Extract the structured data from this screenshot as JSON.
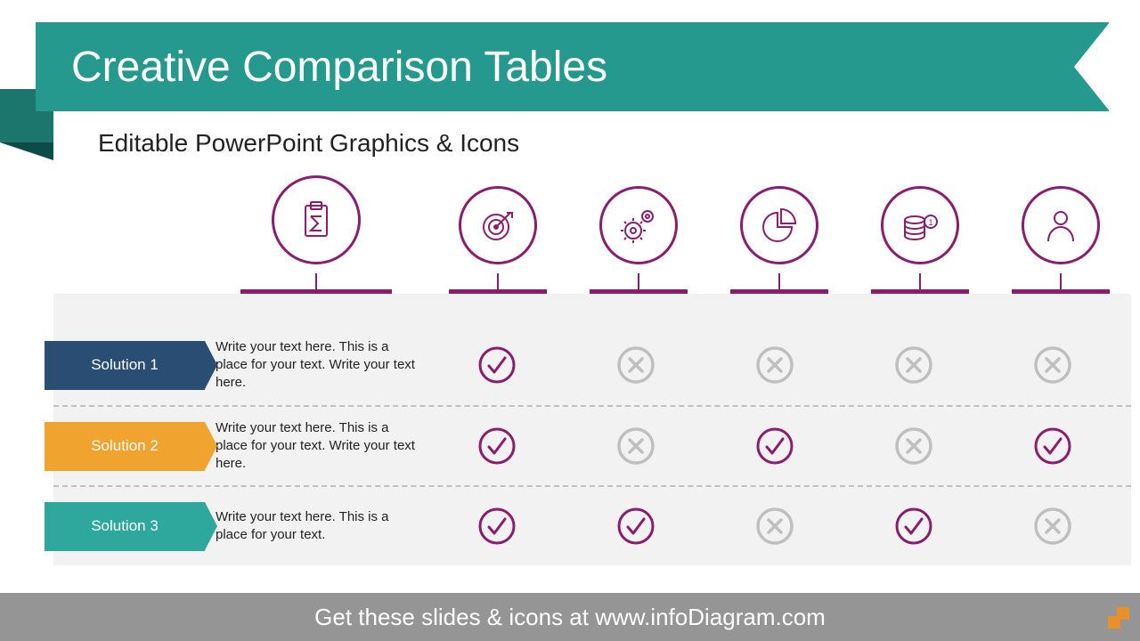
{
  "colors": {
    "ribbon": "#26998f",
    "ribbon_shadow": "#1d766d",
    "accent": "#8a1d6d",
    "row1": "#2a4d74",
    "row2": "#f1a330",
    "row3": "#2ea89c",
    "table_bg": "#f2f2f2",
    "footer_bg": "#959595",
    "check": "#8a1d6d",
    "cross": "#bfbfbf"
  },
  "title": "Creative Comparison Tables",
  "subtitle": "Editable PowerPoint Graphics & Icons",
  "footer": "Get these slides & icons at www.infoDiagram.com",
  "columns": [
    {
      "label": "Description",
      "icon": "clipboard-sum-icon"
    },
    {
      "label": "Strategy",
      "icon": "target-icon"
    },
    {
      "label": "Execution",
      "icon": "gears-icon"
    },
    {
      "label": "Analytics",
      "icon": "pie-chart-icon"
    },
    {
      "label": "Finance",
      "icon": "coins-icon"
    },
    {
      "label": "HR",
      "icon": "person-icon"
    }
  ],
  "rows": [
    {
      "label": "Solution 1",
      "color": "#2a4d74",
      "description": "Write your text here. This is a place for your text. Write your text here.",
      "marks": [
        "check",
        "cross",
        "cross",
        "cross",
        "cross"
      ]
    },
    {
      "label": "Solution 2",
      "color": "#f1a330",
      "description": "Write your text here. This is a place for your text. Write your text here.",
      "marks": [
        "check",
        "cross",
        "check",
        "cross",
        "check"
      ]
    },
    {
      "label": "Solution 3",
      "color": "#2ea89c",
      "description": "Write your text here. This is a place for your text.",
      "marks": [
        "check",
        "check",
        "cross",
        "check",
        "cross"
      ]
    }
  ]
}
